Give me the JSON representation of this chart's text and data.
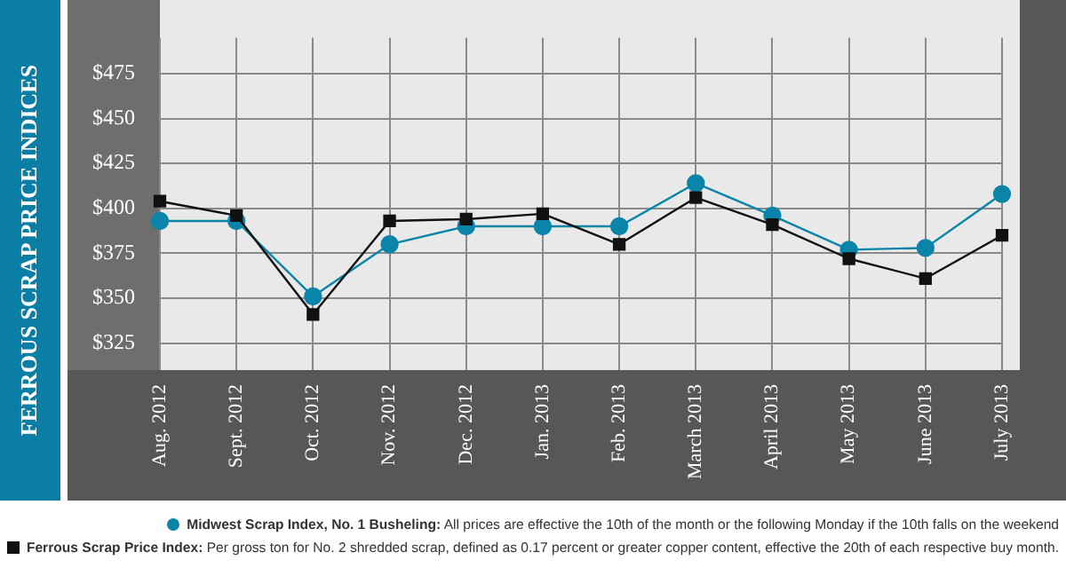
{
  "chart_data": {
    "type": "line",
    "title": "FERROUS SCRAP PRICE INDICES",
    "categories": [
      "Aug. 2012",
      "Sept. 2012",
      "Oct. 2012",
      "Nov. 2012",
      "Dec. 2012",
      "Jan. 2013",
      "Feb. 2013",
      "March 2013",
      "April 2013",
      "May 2013",
      "June 2013",
      "July 2013"
    ],
    "series": [
      {
        "name": "Midwest Scrap Index, No. 1 Busheling:",
        "color": "#0a84a8",
        "marker": "circle",
        "values": [
          393,
          393,
          351,
          380,
          390,
          390,
          390,
          414,
          396,
          377,
          378,
          408
        ]
      },
      {
        "name": "Ferrous Scrap Price Index:",
        "color": "#111111",
        "marker": "square",
        "values": [
          404,
          396,
          341,
          393,
          394,
          397,
          380,
          406,
          391,
          372,
          361,
          385
        ]
      }
    ],
    "ylim": [
      310,
      495
    ],
    "yticks": [
      {
        "value": 325,
        "label": "$325"
      },
      {
        "value": 350,
        "label": "$350"
      },
      {
        "value": 375,
        "label": "$375"
      },
      {
        "value": 400,
        "label": "$400"
      },
      {
        "value": 425,
        "label": "$425"
      },
      {
        "value": 450,
        "label": "$450"
      },
      {
        "value": 475,
        "label": "$475"
      }
    ],
    "grid": true,
    "legend": "bottom",
    "line_style": "solid",
    "annotations": [
      "All prices are effective the 10th of the month or the following Monday if the 10th falls on the weekend",
      "Per gross ton for No. 2 shredded scrap, defined as 0.17 percent or greater copper content, effective the 20th of each respective buy month."
    ]
  }
}
